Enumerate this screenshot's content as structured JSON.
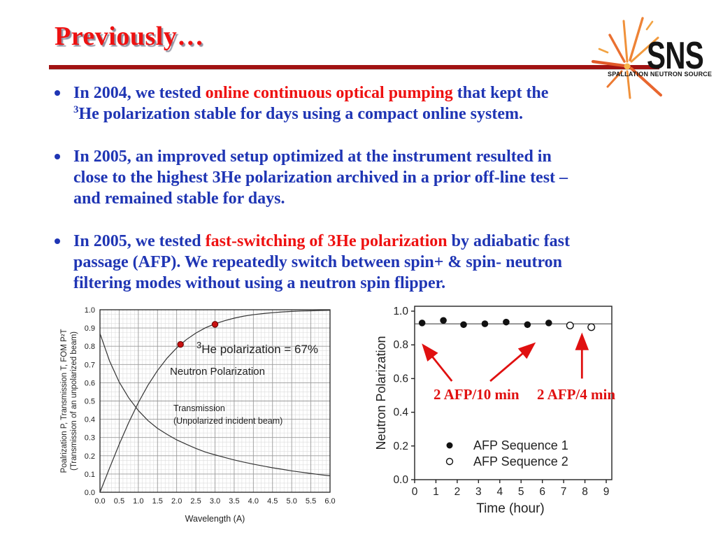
{
  "slide": {
    "title": "Previously…",
    "colors": {
      "title_red": "#ee1111",
      "text_blue": "#1f35b4",
      "highlight_red": "#ee1111",
      "rule_red": "#a11212",
      "data_point_red": "#c81010",
      "arrow_red": "#e01010"
    }
  },
  "logo": {
    "acronym": "SNS",
    "subtitle": "SPALLATION NEUTRON SOURCE"
  },
  "bullets": [
    {
      "lines": [
        [
          {
            "t": "In 2004, we tested ",
            "c": "blue"
          },
          {
            "t": "online continuous optical pumping",
            "c": "red"
          },
          {
            "t": " that kept the",
            "c": "blue"
          }
        ],
        [
          {
            "t": "3",
            "c": "blue",
            "sup": true
          },
          {
            "t": "He polarization stable for days using a compact online system.",
            "c": "blue"
          }
        ]
      ]
    },
    {
      "lines": [
        [
          {
            "t": "In 2005, an improved setup optimized at the instrument resulted in",
            "c": "blue"
          }
        ],
        [
          {
            "t": "close to the highest 3He polarization archived in a prior off-line test –",
            "c": "blue"
          }
        ],
        [
          {
            "t": "and remained stable for days.",
            "c": "blue"
          }
        ]
      ]
    },
    {
      "lines": [
        [
          {
            "t": "In 2005, we tested ",
            "c": "blue"
          },
          {
            "t": "fast-switching of 3He polarization",
            "c": "red"
          },
          {
            "t": " by adiabatic fast",
            "c": "blue"
          }
        ],
        [
          {
            "t": "passage (AFP). We repeatedly switch between spin+ & spin- neutron",
            "c": "blue"
          }
        ],
        [
          {
            "t": "filtering modes without using a neutron spin flipper.",
            "c": "blue"
          }
        ]
      ]
    }
  ],
  "chart_data": [
    {
      "type": "line",
      "xlabel": "Wavelength (A)",
      "ylabel_line1": "Poalrization P, Transmission T, FOM P²T",
      "ylabel_line2": "(Transmission of an unpolarized beam)",
      "xlim": [
        0,
        6
      ],
      "ylim": [
        0,
        1
      ],
      "xticks": [
        "0.0",
        "0.5",
        "1.0",
        "1.5",
        "2.0",
        "2.5",
        "3.0",
        "3.5",
        "4.0",
        "4.5",
        "5.0",
        "5.5",
        "6.0"
      ],
      "yticks": [
        "0.0",
        "0.1",
        "0.2",
        "0.3",
        "0.4",
        "0.5",
        "0.6",
        "0.7",
        "0.8",
        "0.9",
        "1.0"
      ],
      "grid": "fine graph-paper grid, minor and major lines",
      "x_samples": [
        0,
        0.25,
        0.5,
        0.75,
        1,
        1.25,
        1.5,
        1.75,
        2,
        2.25,
        2.5,
        2.75,
        3,
        3.25,
        3.5,
        3.75,
        4,
        4.25,
        4.5,
        4.75,
        5,
        5.25,
        5.5,
        5.75,
        6
      ],
      "series": [
        {
          "name": "Neutron Polarization",
          "values": [
            0,
            0.133,
            0.262,
            0.382,
            0.491,
            0.586,
            0.667,
            0.735,
            0.791,
            0.836,
            0.872,
            0.901,
            0.923,
            0.94,
            0.954,
            0.965,
            0.973,
            0.979,
            0.984,
            0.988,
            0.991,
            0.993,
            0.994,
            0.996,
            0.997
          ]
        },
        {
          "name": "Transmission (Unpolarized incident beam)",
          "values": [
            0.87,
            0.719,
            0.604,
            0.517,
            0.448,
            0.393,
            0.35,
            0.317,
            0.287,
            0.263,
            0.24,
            0.22,
            0.205,
            0.191,
            0.177,
            0.165,
            0.154,
            0.144,
            0.134,
            0.126,
            0.117,
            0.11,
            0.103,
            0.096,
            0.09
          ]
        }
      ],
      "measured_points": {
        "x": [
          2.1,
          3.0
        ],
        "y": [
          0.81,
          0.92
        ],
        "color": "#c81010"
      },
      "annotation_sup": "3",
      "annotation_text": "He polarization = 67%",
      "label_polarization": "Neutron Polarization",
      "label_transmission_1": "Transmission",
      "label_transmission_2": "(Unpolarized incident beam)"
    },
    {
      "type": "scatter",
      "xlabel": "Time (hour)",
      "ylabel": "Neutron Polarization",
      "xlim": [
        0,
        9
      ],
      "ylim": [
        0,
        1
      ],
      "xticks": [
        "0",
        "1",
        "2",
        "3",
        "4",
        "5",
        "6",
        "7",
        "8",
        "9"
      ],
      "yticks": [
        "0.0",
        "0.2",
        "0.4",
        "0.6",
        "0.8",
        "1.0"
      ],
      "ref_line_y": 0.925,
      "series": [
        {
          "name": "AFP Sequence 1",
          "marker": "filled",
          "x": [
            0.35,
            1.35,
            2.3,
            3.3,
            4.3,
            5.3,
            6.3
          ],
          "y": [
            0.93,
            0.945,
            0.92,
            0.925,
            0.935,
            0.92,
            0.93
          ]
        },
        {
          "name": "AFP Sequence 2",
          "marker": "open",
          "x": [
            7.3,
            8.3
          ],
          "y": [
            0.915,
            0.905
          ]
        }
      ],
      "annotations": [
        {
          "text": "2 AFP/10 min"
        },
        {
          "text": "2 AFP/4 min"
        }
      ],
      "arrows": [
        {
          "from_x": 1.75,
          "from_y": 0.585,
          "to_x": 0.45,
          "to_y": 0.79
        },
        {
          "from_x": 3.55,
          "from_y": 0.585,
          "to_x": 5.55,
          "to_y": 0.8
        },
        {
          "from_x": 7.86,
          "from_y": 0.6,
          "to_x": 7.86,
          "to_y": 0.85
        }
      ],
      "legend_position": "inside lower-center"
    }
  ]
}
